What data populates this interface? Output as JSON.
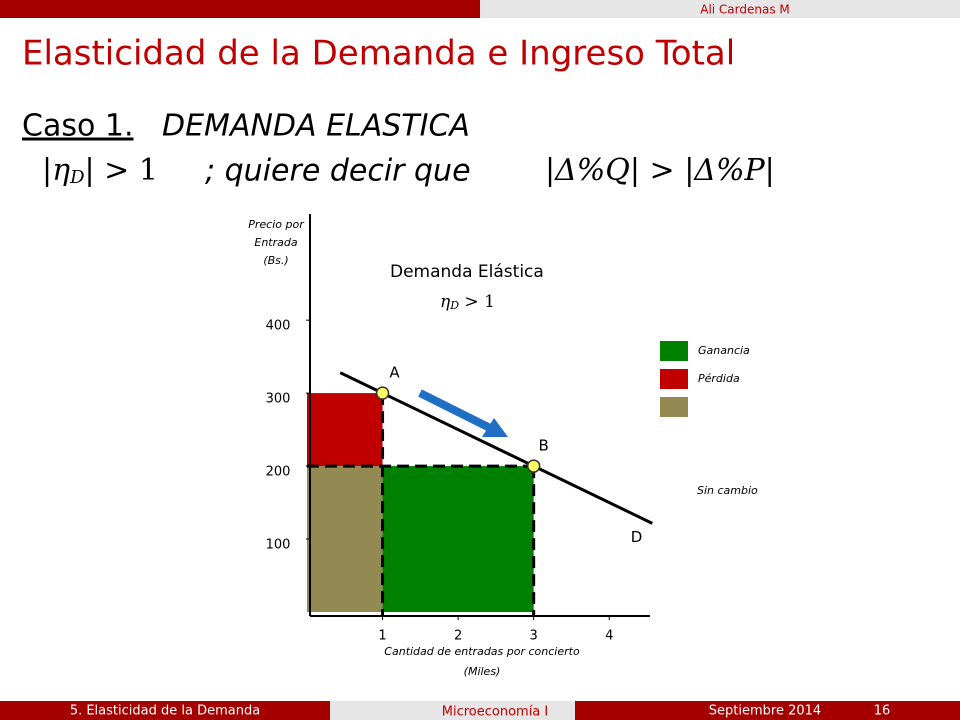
{
  "header": {
    "author": "Ali Cardenas M",
    "title": "Elasticidad de la Demanda e Ingreso Total"
  },
  "case": {
    "label": "Caso 1.",
    "name": "DEMANDA ELASTICA",
    "condition": [
      "|η",
      "D",
      "| > 1"
    ],
    "connector": "; quiere decir que",
    "implication": "|Δ%Q| > |Δ%P|"
  },
  "chart_data": {
    "type": "line",
    "annotation": "Demanda Elástica",
    "annotation_math": [
      "η",
      "D",
      " > 1"
    ],
    "y_label": [
      "Precio por",
      "Entrada",
      "(Bs.)"
    ],
    "x_label": [
      "Cantidad de entradas por concierto",
      "(Miles)"
    ],
    "xlim": [
      0,
      4.5
    ],
    "ylim": [
      0,
      540
    ],
    "xticks": [
      1,
      2,
      3,
      4
    ],
    "yticks": [
      100,
      200,
      300,
      400
    ],
    "series": [
      {
        "name": "D",
        "color": "#000000",
        "x": [
          0.44,
          4.57
        ],
        "values": [
          328,
          121.5
        ]
      }
    ],
    "points": [
      {
        "name": "A",
        "x": 1,
        "value": 300
      },
      {
        "name": "B",
        "x": 3,
        "value": 200
      }
    ],
    "regions": [
      {
        "xlim": [
          0,
          1
        ],
        "ylim": [
          200,
          300
        ],
        "color": "#c00000"
      },
      {
        "xlim": [
          0,
          1
        ],
        "ylim": [
          0,
          200
        ],
        "color": "#938953"
      },
      {
        "xlim": [
          1,
          3
        ],
        "ylim": [
          0,
          200
        ],
        "color": "#008000"
      }
    ],
    "legend": [
      {
        "label": "Ganancia",
        "color": "#008000"
      },
      {
        "label": "Pérdida",
        "color": "#c00000"
      },
      {
        "label": "Sin cambio",
        "color": "#938953"
      }
    ]
  },
  "footer": {
    "section": "5. Elasticidad de la Demanda",
    "course": "Microeconomía I",
    "date": "Septiembre 2014",
    "page": "16"
  }
}
